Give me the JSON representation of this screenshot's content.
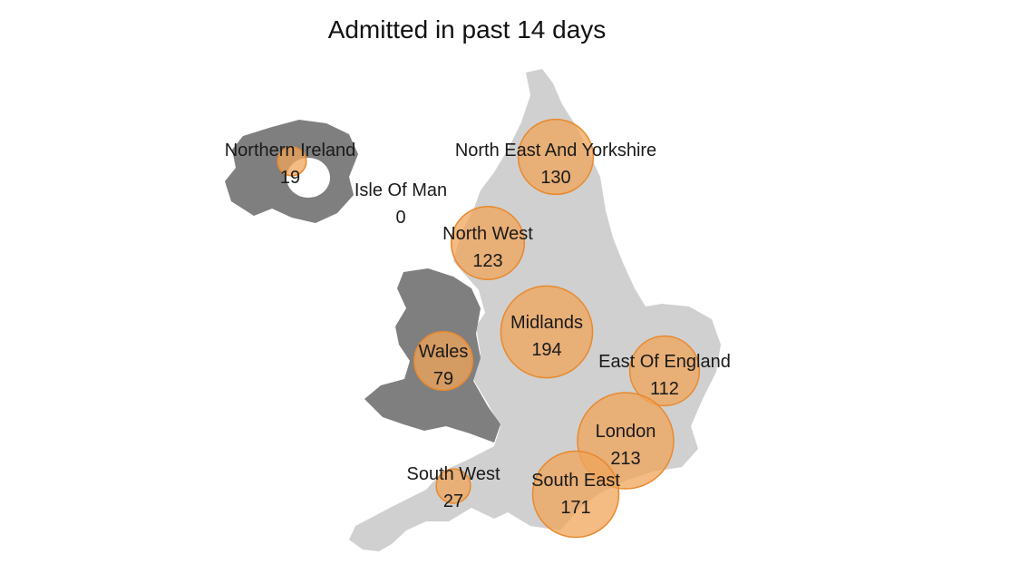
{
  "title": "Admitted in past 14 days",
  "colors": {
    "england": "#d0d0d0",
    "devolved": "#7f7f7f",
    "bubble_fill": "#f0a45a",
    "bubble_stroke": "#e8892e",
    "text": "#1a1a1a"
  },
  "regions": [
    {
      "name": "Northern Ireland",
      "value": 19
    },
    {
      "name": "Isle Of Man",
      "value": 0
    },
    {
      "name": "North East And Yorkshire",
      "value": 130
    },
    {
      "name": "North West",
      "value": 123
    },
    {
      "name": "Midlands",
      "value": 194
    },
    {
      "name": "Wales",
      "value": 79
    },
    {
      "name": "East Of England",
      "value": 112
    },
    {
      "name": "London",
      "value": 213
    },
    {
      "name": "South West",
      "value": 27
    },
    {
      "name": "South East",
      "value": 171
    }
  ]
}
